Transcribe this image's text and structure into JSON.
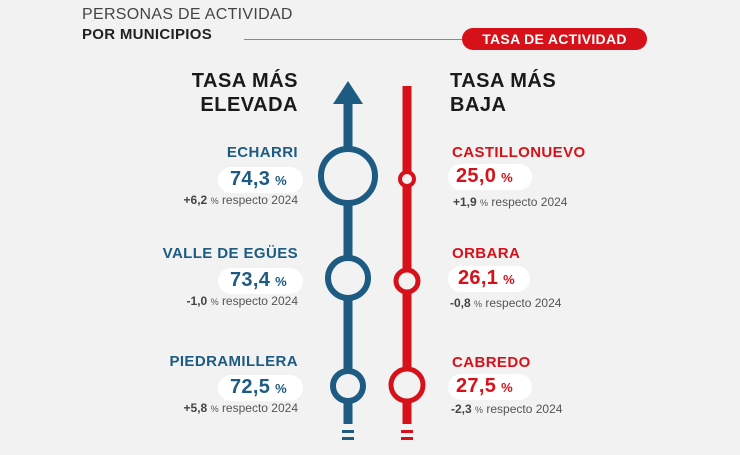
{
  "header": {
    "line1": "PERSONAS DE ACTIVIDAD",
    "line2": "POR MUNICIPIOS",
    "badge": "TASA DE ACTIVIDAD"
  },
  "columns": {
    "high_title_1": "TASA MÁS",
    "high_title_2": "ELEVADA",
    "low_title_1": "TASA MÁS",
    "low_title_2": "BAJA"
  },
  "units": {
    "percent": "%",
    "suffix": "respecto 2024"
  },
  "high": [
    {
      "name": "ECHARRI",
      "value": "74,3",
      "delta": "+6,2"
    },
    {
      "name": "VALLE DE EGÜES",
      "value": "73,4",
      "delta": "-1,0"
    },
    {
      "name": "PIEDRAMILLERA",
      "value": "72,5",
      "delta": "+5,8"
    }
  ],
  "low": [
    {
      "name": "CASTILLONUEVO",
      "value": "25,0",
      "delta": "+1,9"
    },
    {
      "name": "ORBARA",
      "value": "26,1",
      "delta": "-0,8"
    },
    {
      "name": "CABREDO",
      "value": "27,5",
      "delta": "-2,3"
    }
  ],
  "colors": {
    "blue": "#1d5b82",
    "red": "#d7111a",
    "background": "#f2f2f2"
  }
}
